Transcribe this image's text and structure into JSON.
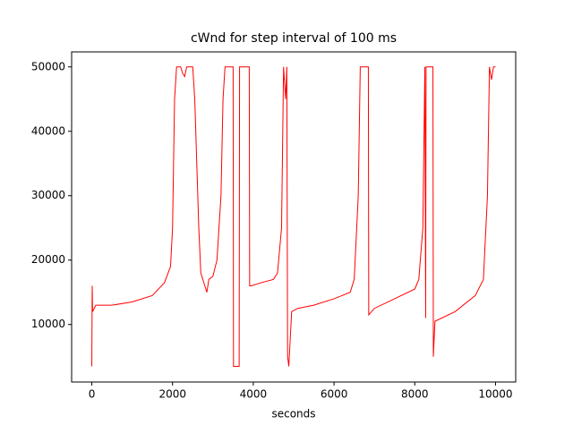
{
  "chart_data": {
    "type": "line",
    "title": "cWnd for step interval of 100 ms",
    "x_label": "seconds",
    "x": [
      0,
      10,
      20,
      100,
      500,
      1000,
      1500,
      1800,
      1950,
      2000,
      2050,
      2100,
      2200,
      2250,
      2300,
      2350,
      2500,
      2550,
      2600,
      2650,
      2700,
      2800,
      2850,
      2900,
      3000,
      3100,
      3200,
      3250,
      3300,
      3500,
      3510,
      3650,
      3660,
      3900,
      3910,
      3950,
      4200,
      4500,
      4600,
      4700,
      4750,
      4800,
      4830,
      4850,
      4880,
      4950,
      5100,
      5500,
      6000,
      6400,
      6500,
      6600,
      6650,
      6850,
      6860,
      7000,
      7500,
      8000,
      8100,
      8200,
      8250,
      8270,
      8280,
      8450,
      8460,
      8500,
      9000,
      9500,
      9700,
      9800,
      9850,
      9900,
      9950,
      10000
    ],
    "series": [
      {
        "name": "cWnd",
        "color": "#ff0000",
        "values": [
          3500,
          16000,
          12000,
          13000,
          13000,
          13500,
          14500,
          16500,
          19000,
          25000,
          45000,
          50000,
          50000,
          49000,
          48500,
          50000,
          50000,
          45000,
          35000,
          25000,
          18000,
          16000,
          15000,
          17000,
          17500,
          20000,
          30000,
          45000,
          50000,
          50000,
          3500,
          3500,
          50000,
          50000,
          16000,
          16000,
          16500,
          17000,
          18000,
          25000,
          50000,
          45000,
          50000,
          5000,
          3500,
          12000,
          12500,
          13000,
          14000,
          15000,
          17000,
          30000,
          50000,
          50000,
          11500,
          12500,
          14000,
          15500,
          17000,
          25000,
          50000,
          11000,
          50000,
          50000,
          5000,
          10500,
          12000,
          14500,
          17000,
          30000,
          50000,
          48000,
          50000,
          50000
        ]
      }
    ],
    "xlim": [
      -500,
      10500
    ],
    "ylim": [
      1070,
      52330
    ],
    "xticks": [
      0,
      2000,
      4000,
      6000,
      8000,
      10000
    ],
    "yticks": [
      10000,
      20000,
      30000,
      40000,
      50000
    ]
  }
}
